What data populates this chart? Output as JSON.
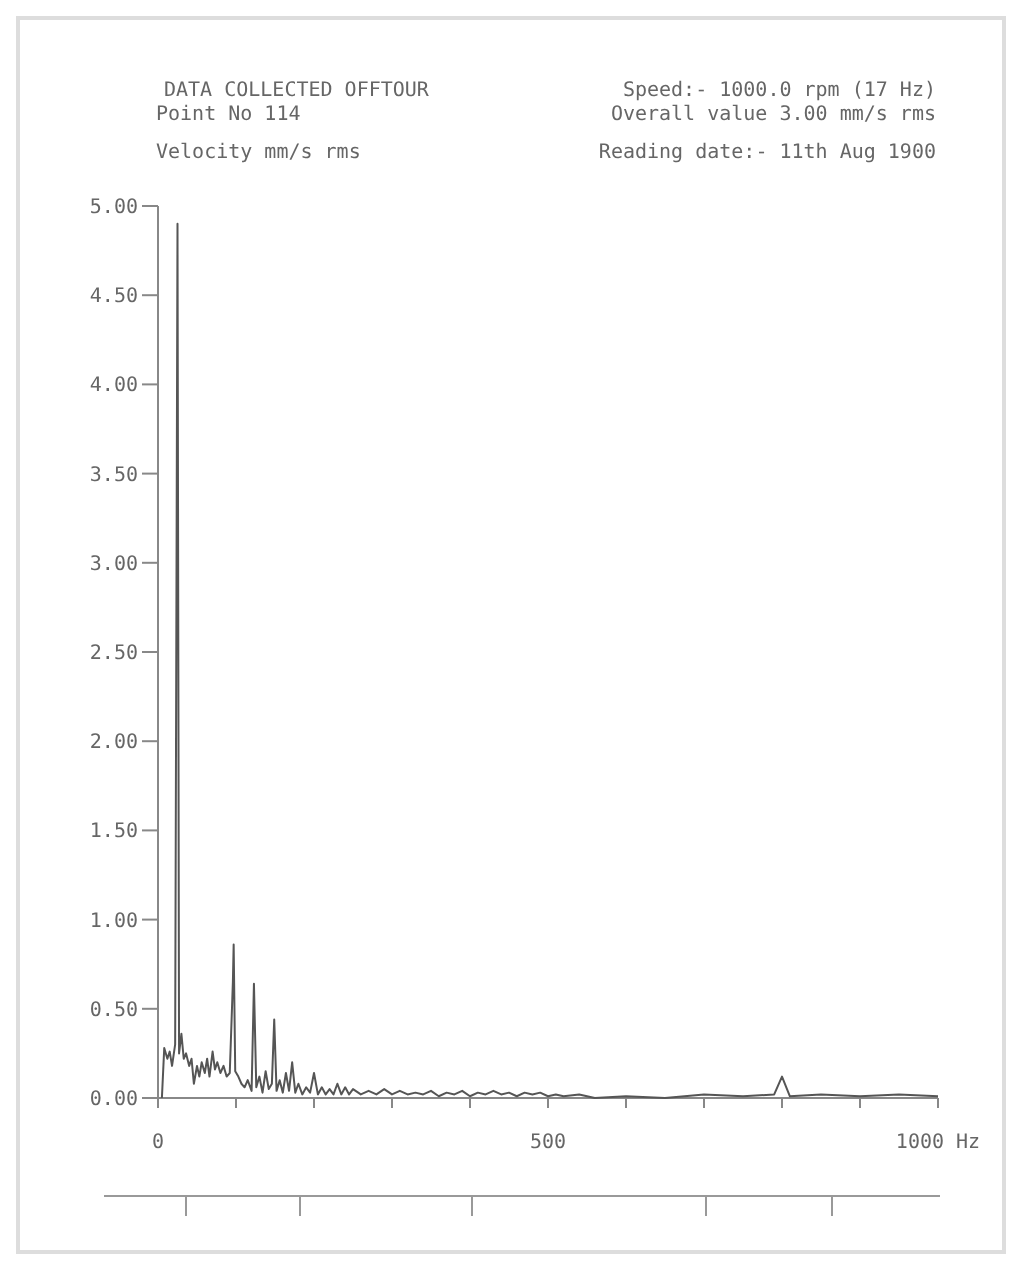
{
  "chart_data": {
    "type": "line",
    "title": "DATA COLLECTED OFFTOUR",
    "ylabel": "Velocity mm/s rms",
    "annotations": [
      "Point No 114",
      "Speed:- 1000.0 rpm (17 Hz)",
      "Overall value 3.00 mm/s rms",
      "Reading date:- 11th Aug 1900"
    ],
    "x": [
      5,
      8,
      12,
      15,
      18,
      22,
      25,
      27,
      30,
      33,
      36,
      40,
      43,
      46,
      50,
      53,
      56,
      60,
      63,
      66,
      70,
      73,
      76,
      80,
      84,
      88,
      92,
      96,
      97,
      99,
      103,
      107,
      111,
      115,
      120,
      123,
      126,
      130,
      134,
      138,
      142,
      146,
      149,
      152,
      156,
      160,
      164,
      168,
      172,
      176,
      180,
      185,
      190,
      195,
      200,
      205,
      210,
      215,
      220,
      225,
      230,
      235,
      240,
      245,
      250,
      260,
      270,
      280,
      290,
      300,
      310,
      320,
      330,
      340,
      350,
      360,
      370,
      380,
      390,
      400,
      410,
      420,
      430,
      440,
      450,
      460,
      470,
      480,
      490,
      500,
      510,
      520,
      540,
      560,
      600,
      650,
      700,
      750,
      790,
      800,
      810,
      850,
      900,
      950,
      1000
    ],
    "series": [
      {
        "color": "#555555",
        "values": [
          0.0,
          0.28,
          0.22,
          0.26,
          0.18,
          0.3,
          4.9,
          0.25,
          0.36,
          0.22,
          0.25,
          0.18,
          0.22,
          0.08,
          0.18,
          0.12,
          0.2,
          0.14,
          0.22,
          0.12,
          0.26,
          0.16,
          0.2,
          0.14,
          0.18,
          0.12,
          0.14,
          0.65,
          0.86,
          0.15,
          0.12,
          0.08,
          0.06,
          0.1,
          0.04,
          0.64,
          0.06,
          0.12,
          0.03,
          0.15,
          0.05,
          0.08,
          0.44,
          0.04,
          0.1,
          0.03,
          0.14,
          0.04,
          0.2,
          0.03,
          0.08,
          0.02,
          0.06,
          0.03,
          0.14,
          0.02,
          0.06,
          0.02,
          0.05,
          0.02,
          0.08,
          0.02,
          0.06,
          0.02,
          0.05,
          0.02,
          0.04,
          0.02,
          0.05,
          0.02,
          0.04,
          0.02,
          0.03,
          0.02,
          0.04,
          0.01,
          0.03,
          0.02,
          0.04,
          0.01,
          0.03,
          0.02,
          0.04,
          0.02,
          0.03,
          0.01,
          0.03,
          0.02,
          0.03,
          0.01,
          0.02,
          0.01,
          0.02,
          0.0,
          0.01,
          0.0,
          0.02,
          0.01,
          0.02,
          0.12,
          0.01,
          0.02,
          0.01,
          0.02,
          0.01
        ]
      }
    ],
    "xlim": [
      0,
      1000
    ],
    "xticks": [
      0,
      {
        "value": 100,
        "label": null
      },
      {
        "value": 200,
        "label": null
      },
      {
        "value": 300,
        "label": null
      },
      {
        "value": 400,
        "label": null
      },
      500,
      {
        "value": 600,
        "label": null
      },
      {
        "value": 700,
        "label": null
      },
      {
        "value": 800,
        "label": null
      },
      {
        "value": 900,
        "label": null
      },
      {
        "value": 1000,
        "label": "1000 Hz"
      }
    ],
    "ylim": [
      0,
      5
    ],
    "yticks": [
      {
        "value": 0,
        "label": "0.00"
      },
      {
        "value": 0.5,
        "label": "0.50"
      },
      {
        "value": 1,
        "label": "1.00"
      },
      {
        "value": 1.5,
        "label": "1.50"
      },
      {
        "value": 2,
        "label": "2.00"
      },
      {
        "value": 2.5,
        "label": "2.50"
      },
      {
        "value": 3,
        "label": "3.00"
      },
      {
        "value": 3.5,
        "label": "3.50"
      },
      {
        "value": 4,
        "label": "4.00"
      },
      {
        "value": 4.5,
        "label": "4.50"
      },
      {
        "value": 5,
        "label": "5.00"
      }
    ],
    "grid": false,
    "marker": "none",
    "line_style": "solid"
  }
}
